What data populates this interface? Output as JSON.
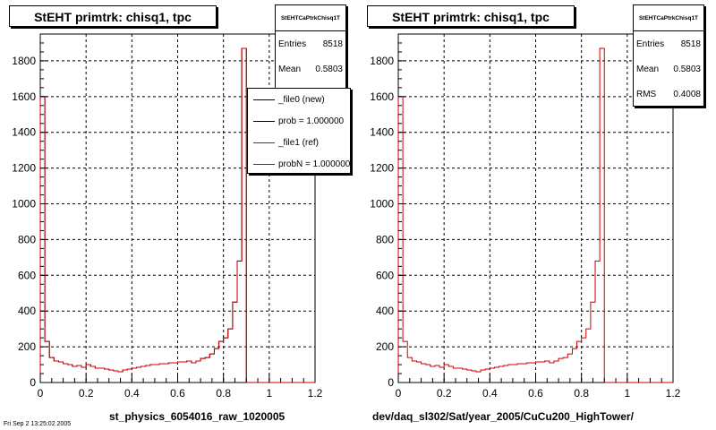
{
  "chart_data": [
    {
      "type": "bar",
      "title": "StEHT primtrk: chisq1, tpc",
      "xlabel": "st_physics_6054016_raw_1020005",
      "ylabel": "",
      "xlim": [
        0,
        1.2
      ],
      "ylim": [
        0,
        1950
      ],
      "xticks": [
        "0",
        "0.2",
        "0.4",
        "0.6",
        "0.8",
        "1",
        "1.2"
      ],
      "yticks": [
        "0",
        "200",
        "400",
        "600",
        "800",
        "1000",
        "1200",
        "1400",
        "1600",
        "1800"
      ],
      "grid": true,
      "bin_edges_start": 0,
      "bin_width": 0.02,
      "series": [
        {
          "name": "_file0 (new)",
          "color": "#000000",
          "values": [
            1600,
            230,
            140,
            120,
            115,
            105,
            100,
            90,
            95,
            85,
            100,
            90,
            80,
            80,
            75,
            70,
            65,
            60,
            70,
            75,
            80,
            85,
            90,
            95,
            100,
            100,
            105,
            105,
            110,
            110,
            115,
            115,
            120,
            110,
            120,
            135,
            140,
            160,
            190,
            230,
            250,
            300,
            450,
            680,
            1870,
            0,
            0,
            0,
            0,
            0,
            0,
            0,
            0,
            0,
            0,
            0,
            0,
            0,
            0,
            0
          ]
        },
        {
          "name": "_file1 (ref)",
          "color": "#cc0000",
          "values": [
            1600,
            230,
            140,
            120,
            115,
            105,
            100,
            90,
            95,
            85,
            100,
            90,
            80,
            80,
            75,
            70,
            65,
            60,
            70,
            75,
            80,
            85,
            90,
            95,
            100,
            100,
            105,
            105,
            110,
            110,
            115,
            115,
            120,
            110,
            120,
            135,
            140,
            160,
            190,
            230,
            250,
            300,
            450,
            680,
            1870,
            0,
            0,
            0,
            0,
            0,
            0,
            0,
            0,
            0,
            0,
            0,
            0,
            0,
            0,
            0
          ]
        }
      ]
    },
    {
      "type": "bar",
      "title": "StEHT primtrk: chisq1, tpc",
      "xlabel": "dev/daq_sl302/Sat/year_2005/CuCu200_HighTower/",
      "ylabel": "",
      "xlim": [
        0,
        1.2
      ],
      "ylim": [
        0,
        1950
      ],
      "xticks": [
        "0",
        "0.2",
        "0.4",
        "0.6",
        "0.8",
        "1",
        "1.2"
      ],
      "yticks": [
        "0",
        "200",
        "400",
        "600",
        "800",
        "1000",
        "1200",
        "1400",
        "1600",
        "1800"
      ],
      "grid": true,
      "bin_edges_start": 0,
      "bin_width": 0.02,
      "series": [
        {
          "name": "",
          "color": "#cc0000",
          "values": [
            1600,
            230,
            140,
            120,
            115,
            105,
            100,
            90,
            95,
            85,
            100,
            90,
            80,
            80,
            75,
            70,
            65,
            60,
            70,
            75,
            80,
            85,
            90,
            95,
            100,
            100,
            105,
            105,
            110,
            110,
            115,
            115,
            120,
            110,
            120,
            135,
            140,
            160,
            190,
            230,
            250,
            300,
            450,
            680,
            1870,
            0,
            0,
            0,
            0,
            0,
            0,
            0,
            0,
            0,
            0,
            0,
            0,
            0,
            0,
            0
          ]
        }
      ]
    }
  ],
  "left": {
    "title": "StEHT primtrk: chisq1, tpc",
    "stats": {
      "name": "StEHTCaPtrkChisq1T",
      "rows": [
        {
          "label": "Entries",
          "value": "8518"
        },
        {
          "label": "Mean",
          "value": "0.5803"
        }
      ]
    },
    "legend": [
      {
        "label": "_file0 (new)",
        "color": "#000000"
      },
      {
        "label": "prob = 1.000000",
        "color": "#000000"
      },
      {
        "label": "_file1 (ref)",
        "color": "#cc0000"
      },
      {
        "label": "probN = 1.000000",
        "color": "#cc0000"
      }
    ],
    "xtitle": "st_physics_6054016_raw_1020005"
  },
  "right": {
    "title": "StEHT primtrk: chisq1, tpc",
    "stats": {
      "name": "StEHTCaPtrkChisq1T",
      "rows": [
        {
          "label": "Entries",
          "value": "8518"
        },
        {
          "label": "Mean",
          "value": "0.5803"
        },
        {
          "label": "RMS",
          "value": "0.4008"
        }
      ]
    },
    "xtitle": "dev/daq_sl302/Sat/year_2005/CuCu200_HighTower/"
  },
  "footer": "Fri Sep  2 13:25:02 2005"
}
